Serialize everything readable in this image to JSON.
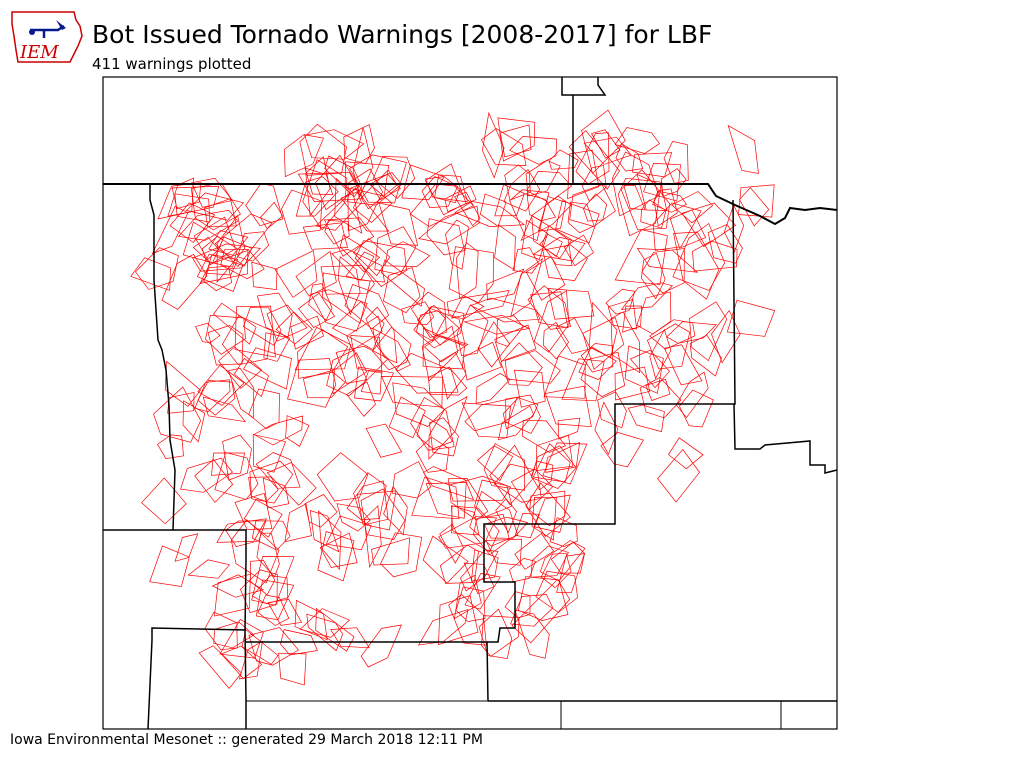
{
  "header": {
    "title": "Bot Issued Tornado Warnings [2008-2017] for LBF",
    "subtitle": "411 warnings plotted"
  },
  "logo": {
    "text": "IEM",
    "icon": "iowa-state-outline-icon",
    "color": "#cc0000"
  },
  "footer": {
    "text": "Iowa Environmental Mesonet :: generated 29 March 2018 12:11 PM"
  },
  "map": {
    "warning_count": 411,
    "warning_color": "#ff0000",
    "boundary_color": "#000000"
  }
}
